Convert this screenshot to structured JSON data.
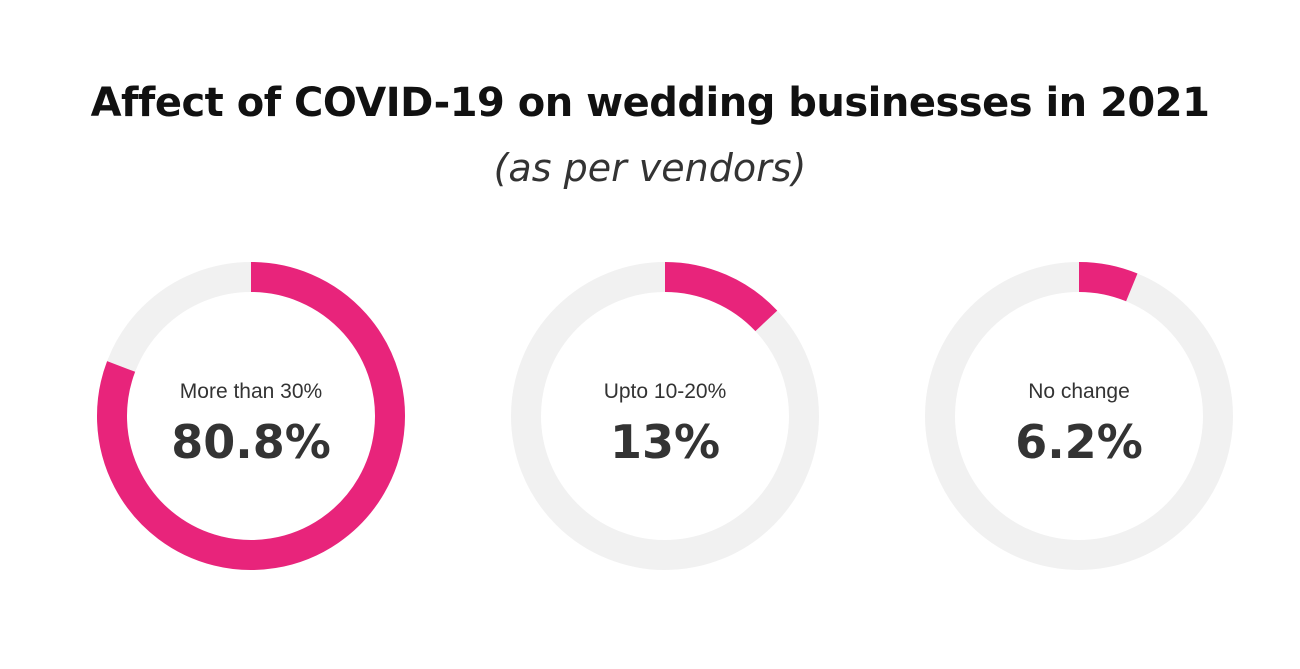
{
  "title": "Affect of COVID-19 on wedding businesses in 2021",
  "subtitle": "(as per vendors)",
  "colors": {
    "accent": "#e8247b",
    "track": "#f1f1f1",
    "text": "#333333"
  },
  "chart_data": [
    {
      "type": "pie",
      "label": "More than 30%",
      "value": 80.8,
      "value_text": "80.8%"
    },
    {
      "type": "pie",
      "label": "Upto 10-20%",
      "value": 13,
      "value_text": "13%"
    },
    {
      "type": "pie",
      "label": "No change",
      "value": 6.2,
      "value_text": "6.2%"
    }
  ]
}
